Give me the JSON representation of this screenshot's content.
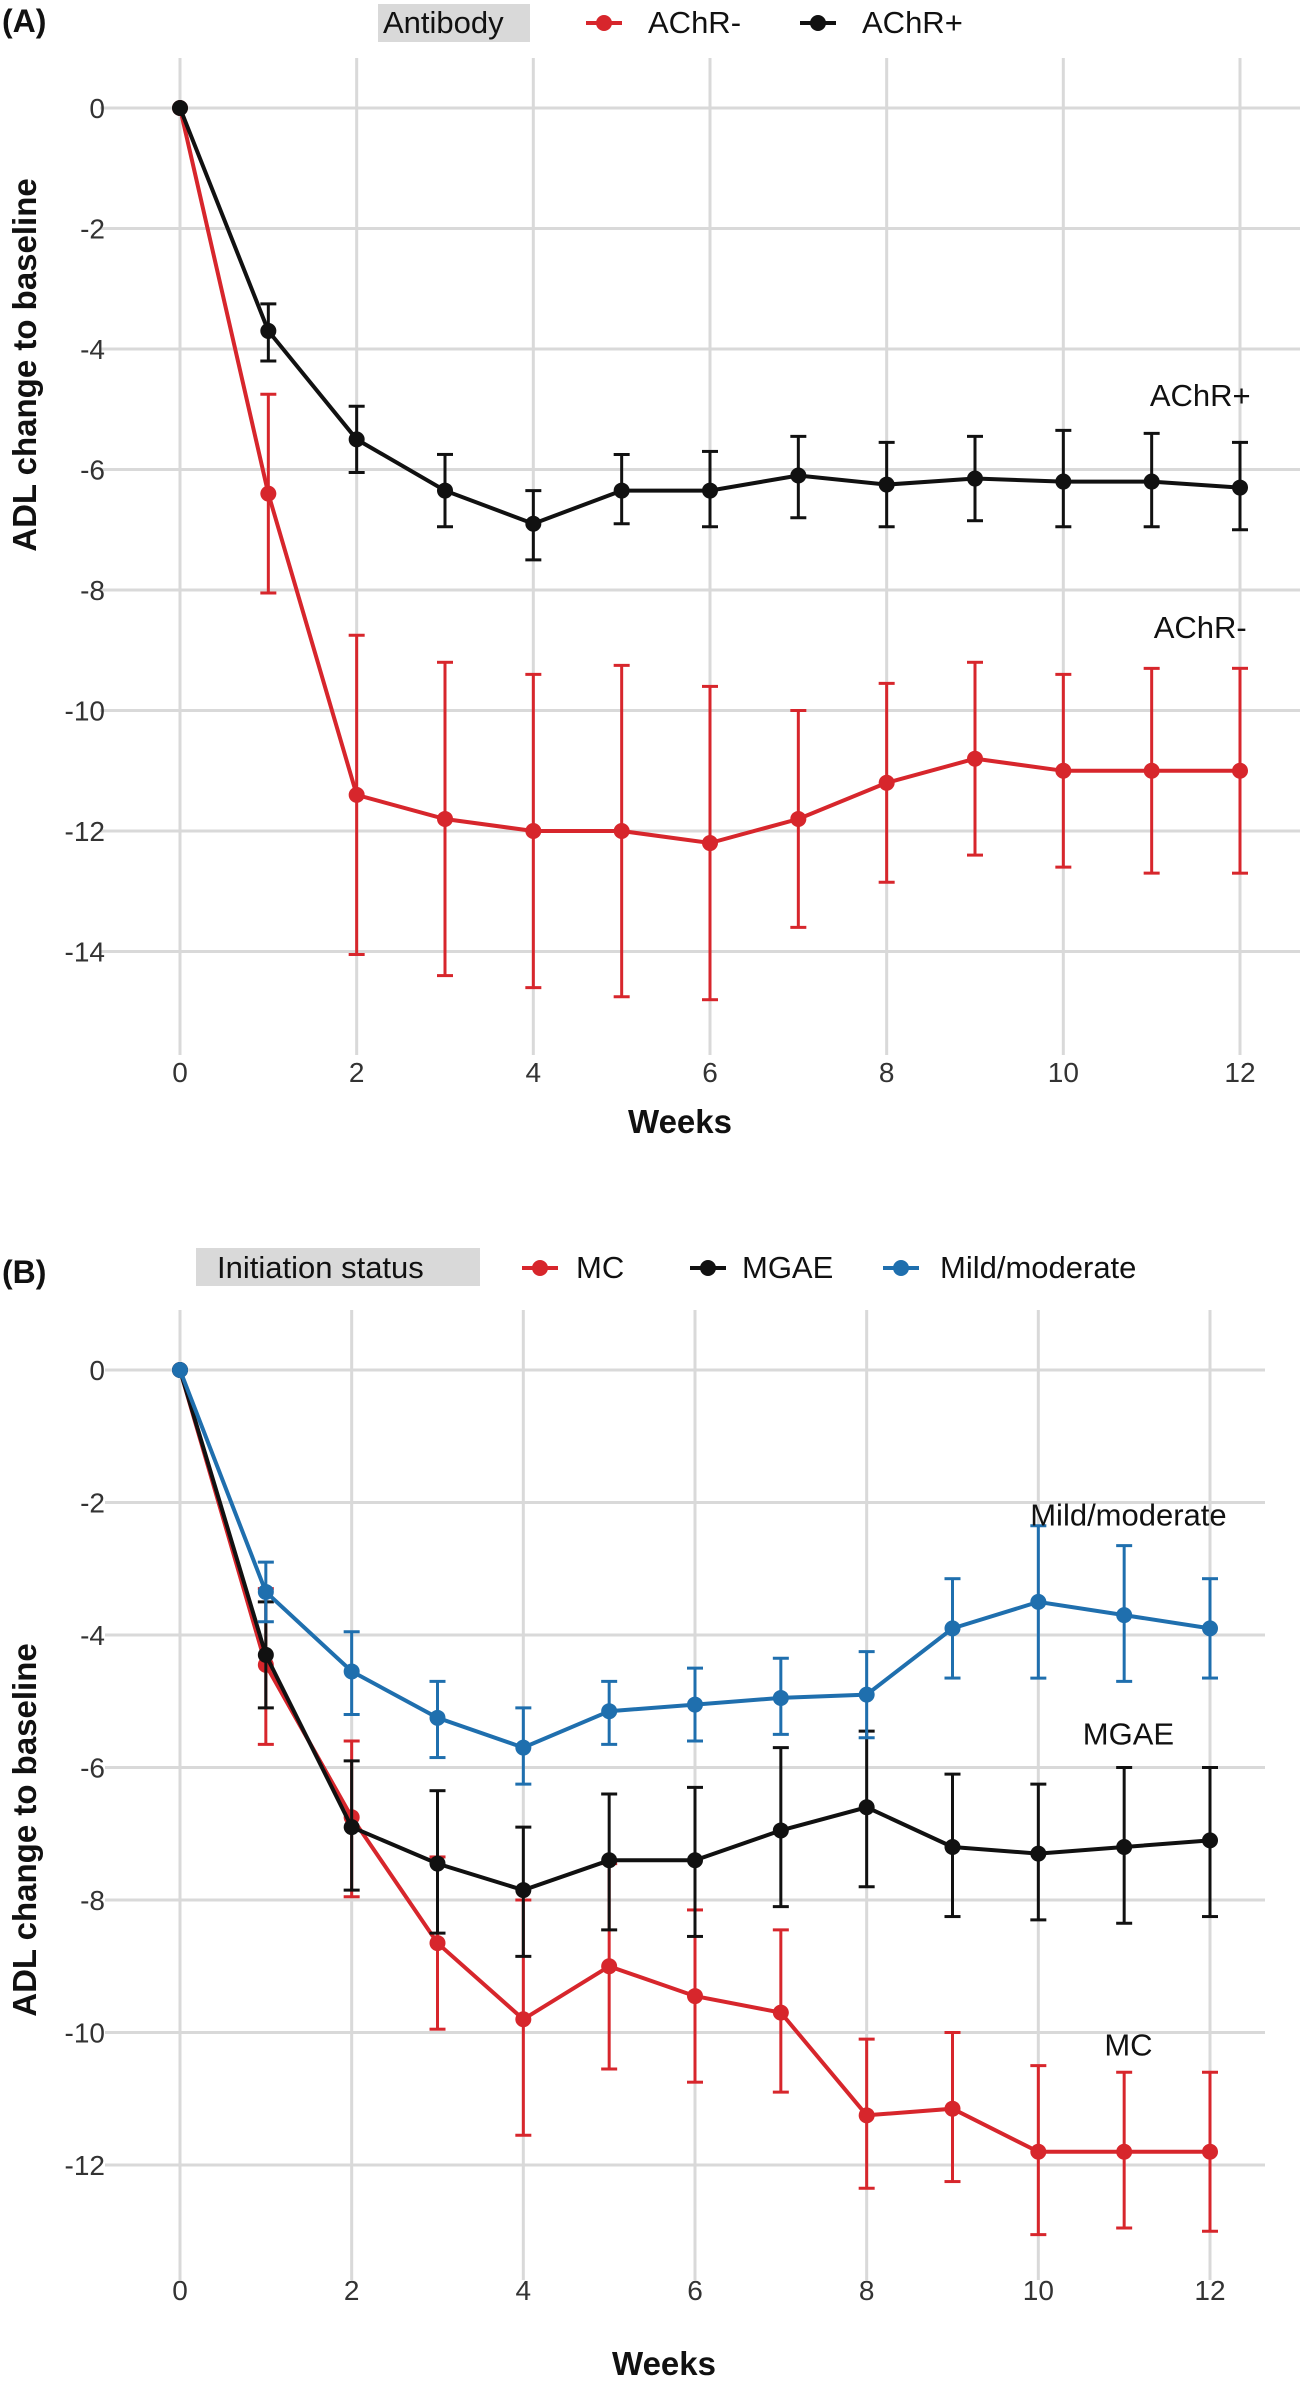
{
  "chart_data": [
    {
      "panel_label": "(A)",
      "type": "line",
      "xlabel": "Weeks",
      "ylabel": "ADL change to baseline",
      "xlim": [
        0,
        12
      ],
      "ylim": [
        -15,
        0.5
      ],
      "x_ticks": [
        0,
        2,
        4,
        6,
        8,
        10,
        12
      ],
      "y_ticks": [
        0,
        -2,
        -4,
        -6,
        -8,
        -10,
        -12,
        -14
      ],
      "grid": true,
      "legend": {
        "title": "Antibody",
        "placement": "top",
        "entries": [
          "AChR-",
          "AChR+"
        ]
      },
      "series": [
        {
          "name": "AChR-",
          "color": "#d7262c",
          "x": [
            0,
            1,
            2,
            3,
            4,
            5,
            6,
            7,
            8,
            9,
            10,
            11,
            12
          ],
          "y": [
            0,
            -6.4,
            -11.4,
            -11.8,
            -12.0,
            -12.0,
            -12.2,
            -11.8,
            -11.2,
            -10.8,
            -11.0,
            -11.0,
            -11.0
          ],
          "err_low": [
            0,
            -8.05,
            -14.05,
            -14.4,
            -14.6,
            -14.75,
            -14.8,
            -13.6,
            -12.85,
            -12.4,
            -12.6,
            -12.7,
            -12.7
          ],
          "err_high": [
            0,
            -4.75,
            -8.75,
            -9.2,
            -9.4,
            -9.25,
            -9.6,
            -10.0,
            -9.55,
            -9.2,
            -9.4,
            -9.3,
            -9.3
          ]
        },
        {
          "name": "AChR+",
          "color": "#111111",
          "x": [
            0,
            1,
            2,
            3,
            4,
            5,
            6,
            7,
            8,
            9,
            10,
            11,
            12
          ],
          "y": [
            0,
            -3.7,
            -5.5,
            -6.35,
            -6.9,
            -6.35,
            -6.35,
            -6.1,
            -6.25,
            -6.15,
            -6.2,
            -6.2,
            -6.3
          ],
          "err_low": [
            0,
            -4.2,
            -6.05,
            -6.95,
            -7.5,
            -6.9,
            -6.95,
            -6.8,
            -6.95,
            -6.85,
            -6.95,
            -6.95,
            -7.0
          ],
          "err_high": [
            0,
            -3.25,
            -4.95,
            -5.75,
            -6.35,
            -5.75,
            -5.7,
            -5.45,
            -5.55,
            -5.45,
            -5.35,
            -5.4,
            -5.55
          ]
        }
      ],
      "annotations": [
        {
          "text": "AChR+",
          "x": 11.55,
          "y": -4.95
        },
        {
          "text": "AChR-",
          "x": 11.55,
          "y": -8.8
        }
      ]
    },
    {
      "panel_label": "(B)",
      "type": "line",
      "xlabel": "Weeks",
      "ylabel": "ADL change to baseline",
      "xlim": [
        0,
        12
      ],
      "ylim": [
        -13.3,
        0.5
      ],
      "x_ticks": [
        0,
        2,
        4,
        6,
        8,
        10,
        12
      ],
      "y_ticks": [
        0,
        -2,
        -4,
        -6,
        -8,
        -10,
        -12
      ],
      "grid": true,
      "legend": {
        "title": "Initiation status",
        "placement": "top",
        "entries": [
          "MC",
          "MGAE",
          "Mild/moderate"
        ]
      },
      "series": [
        {
          "name": "MC",
          "color": "#d7262c",
          "x": [
            0,
            1,
            2,
            3,
            4,
            5,
            6,
            7,
            8,
            9,
            10,
            11,
            12
          ],
          "y": [
            0,
            -4.45,
            -6.75,
            -8.65,
            -9.8,
            -9.0,
            -9.45,
            -9.7,
            -11.25,
            -11.15,
            -11.8,
            -11.8,
            -11.8
          ],
          "err_low": [
            0,
            -5.65,
            -7.95,
            -9.95,
            -11.55,
            -10.55,
            -10.75,
            -10.9,
            -12.35,
            -12.25,
            -13.05,
            -12.95,
            -13.0
          ],
          "err_high": [
            0,
            -3.3,
            -5.6,
            -7.35,
            -8.0,
            -7.45,
            -8.15,
            -8.45,
            -10.1,
            -10.0,
            -10.5,
            -10.6,
            -10.6
          ]
        },
        {
          "name": "MGAE",
          "color": "#111111",
          "x": [
            0,
            1,
            2,
            3,
            4,
            5,
            6,
            7,
            8,
            9,
            10,
            11,
            12
          ],
          "y": [
            0,
            -4.3,
            -6.9,
            -7.45,
            -7.85,
            -7.4,
            -7.4,
            -6.95,
            -6.6,
            -7.2,
            -7.3,
            -7.2,
            -7.1
          ],
          "err_low": [
            0,
            -5.1,
            -7.85,
            -8.5,
            -8.85,
            -8.45,
            -8.55,
            -8.1,
            -7.8,
            -8.25,
            -8.3,
            -8.35,
            -8.25
          ],
          "err_high": [
            0,
            -3.5,
            -5.9,
            -6.35,
            -6.9,
            -6.4,
            -6.3,
            -5.7,
            -5.45,
            -6.1,
            -6.25,
            -6.0,
            -6.0
          ]
        },
        {
          "name": "Mild/moderate",
          "color": "#1f6fae",
          "x": [
            0,
            1,
            2,
            3,
            4,
            5,
            6,
            7,
            8,
            9,
            10,
            11,
            12
          ],
          "y": [
            0,
            -3.35,
            -4.55,
            -5.25,
            -5.7,
            -5.15,
            -5.05,
            -4.95,
            -4.9,
            -3.9,
            -3.5,
            -3.7,
            -3.9
          ],
          "err_low": [
            0,
            -3.8,
            -5.2,
            -5.85,
            -6.25,
            -5.65,
            -5.6,
            -5.5,
            -5.55,
            -4.65,
            -4.65,
            -4.7,
            -4.65
          ],
          "err_high": [
            0,
            -2.9,
            -3.95,
            -4.7,
            -5.1,
            -4.7,
            -4.5,
            -4.35,
            -4.25,
            -3.15,
            -2.35,
            -2.65,
            -3.15
          ]
        }
      ],
      "annotations": [
        {
          "text": "Mild/moderate",
          "x": 11.05,
          "y": -2.35
        },
        {
          "text": "MGAE",
          "x": 11.05,
          "y": -5.65
        },
        {
          "text": "MC",
          "x": 11.05,
          "y": -10.35
        }
      ]
    }
  ]
}
